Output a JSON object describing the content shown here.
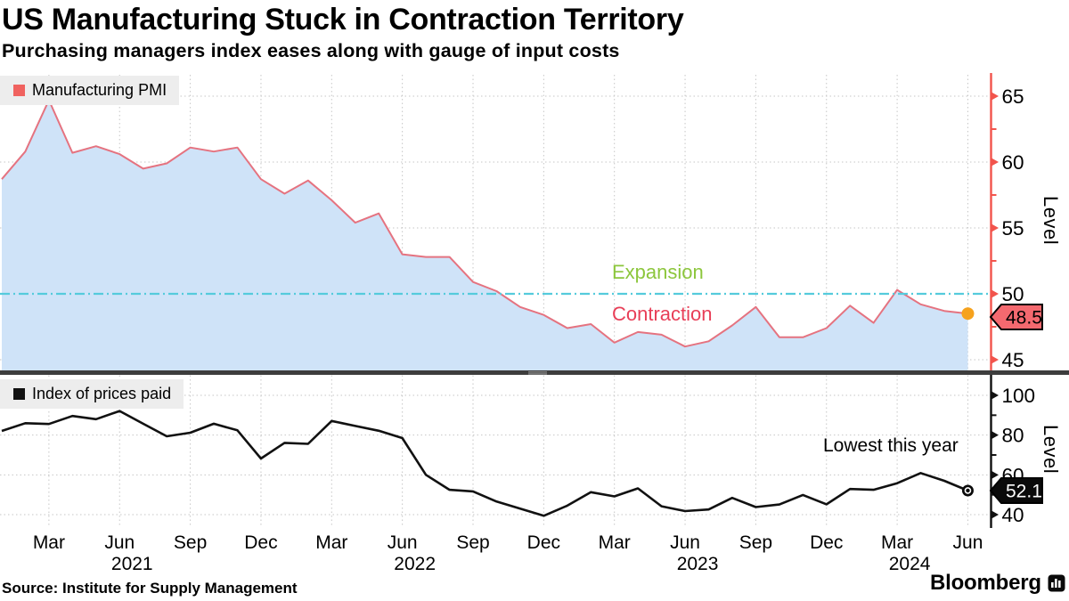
{
  "header": {
    "title": "US Manufacturing Stuck in Contraction Territory",
    "subtitle": "Purchasing managers index eases along with gauge of input costs"
  },
  "labels": {
    "expansion": "Expansion",
    "contraction": "Contraction"
  },
  "xaxis": {
    "quarter_labels": [
      {
        "m": "Mar"
      },
      {
        "m": "Jun",
        "year": "2021"
      },
      {
        "m": "Sep"
      },
      {
        "m": "Dec"
      },
      {
        "m": "Mar"
      },
      {
        "m": "Jun",
        "year": "2022"
      },
      {
        "m": "Sep"
      },
      {
        "m": "Dec"
      },
      {
        "m": "Mar"
      },
      {
        "m": "Jun",
        "year": "2023"
      },
      {
        "m": "Sep"
      },
      {
        "m": "Dec"
      },
      {
        "m": "Mar",
        "year": "2024"
      },
      {
        "m": "Jun"
      }
    ]
  },
  "chart_data": [
    {
      "type": "area",
      "name": "Manufacturing PMI",
      "x_start": "2021-01",
      "x_end": "2024-06",
      "frequency": "monthly",
      "values": [
        58.7,
        60.8,
        64.7,
        60.7,
        61.2,
        60.6,
        59.5,
        59.9,
        61.1,
        60.8,
        61.1,
        58.7,
        57.6,
        58.6,
        57.1,
        55.4,
        56.1,
        53.0,
        52.8,
        52.8,
        50.9,
        50.2,
        49.0,
        48.4,
        47.4,
        47.7,
        46.3,
        47.1,
        46.9,
        46.0,
        46.4,
        47.6,
        49.0,
        46.7,
        46.7,
        47.4,
        49.1,
        47.8,
        50.3,
        49.2,
        48.7,
        48.5
      ],
      "ylabel": "Level",
      "yticks": [
        45,
        50,
        55,
        60,
        65
      ],
      "minor_yticks": [
        47.5,
        52.5,
        57.5,
        62.5
      ],
      "ylim": [
        44,
        66.8
      ],
      "grid": true,
      "last_value": 48.5,
      "last_value_label": "48.5",
      "reference_line": {
        "value": 50,
        "above_label": "Expansion",
        "below_label": "Contraction"
      }
    },
    {
      "type": "line",
      "name": "Index of prices paid",
      "x_start": "2021-01",
      "x_end": "2024-06",
      "frequency": "monthly",
      "values": [
        82.1,
        86.0,
        85.6,
        89.6,
        88.0,
        92.1,
        85.7,
        79.4,
        81.2,
        85.7,
        82.4,
        68.2,
        76.1,
        75.6,
        87.1,
        84.6,
        82.2,
        78.5,
        60.0,
        52.5,
        51.7,
        46.6,
        43.0,
        39.4,
        44.5,
        51.3,
        49.2,
        53.2,
        44.2,
        41.8,
        42.6,
        48.4,
        43.8,
        45.1,
        49.9,
        45.2,
        52.9,
        52.5,
        55.8,
        60.9,
        57.0,
        52.1
      ],
      "ylabel": "Level",
      "yticks": [
        40,
        60,
        80,
        100
      ],
      "minor_yticks": [
        50,
        70,
        90
      ],
      "ylim": [
        33,
        110
      ],
      "grid": true,
      "last_value": 52.1,
      "last_value_label": "52.1",
      "annotation": "Lowest this year"
    }
  ],
  "footer": {
    "source": "Source: Institute for Supply Management",
    "brand": "Bloomberg"
  },
  "colors": {
    "pmi_line": "#e57380",
    "pmi_fill": "#cfe3f8",
    "pmi_swatch": "#f0625f",
    "pmi_axis": "#f2544c",
    "prices_line": "#111111",
    "prices_axis": "#111111",
    "reference_cyan": "#55cbdc",
    "expansion_green": "#8cc63c",
    "contraction_red": "#e83e57",
    "orange_dot": "#f6a21d",
    "tag_pmi_bg": "#f4696f",
    "tag_prices_bg": "#0a0a0a",
    "grid": "#c6c6c6",
    "separator": "#3d3d3d",
    "legend_bg": "#ededed"
  }
}
